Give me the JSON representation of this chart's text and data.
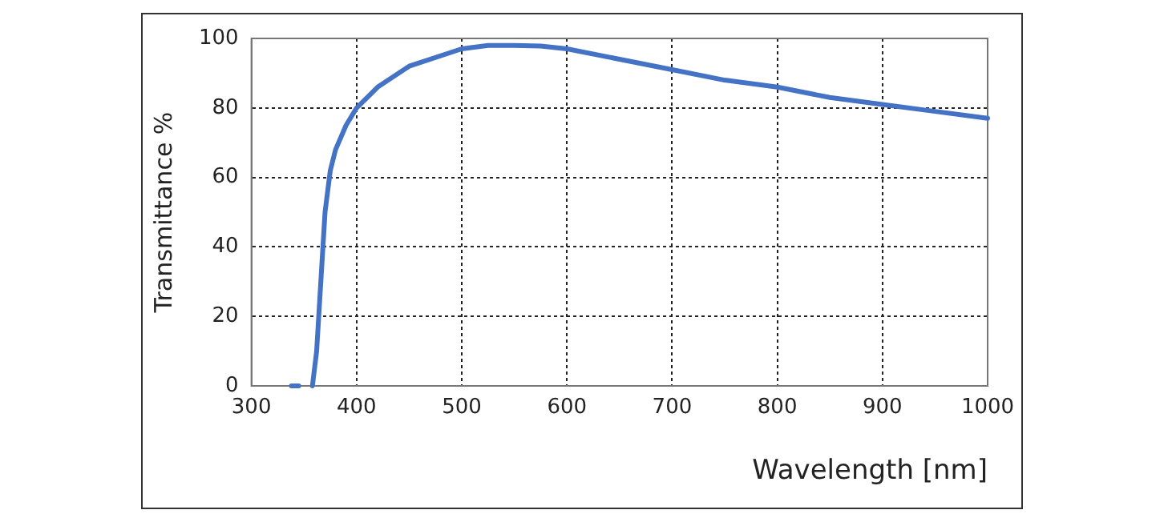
{
  "chart_data": {
    "type": "line",
    "xlabel": "Wavelength [nm]",
    "ylabel": "Transmittance %",
    "x": [
      338,
      345,
      346,
      358,
      362,
      366,
      370,
      375,
      380,
      390,
      400,
      420,
      450,
      500,
      525,
      550,
      575,
      600,
      650,
      700,
      750,
      800,
      850,
      900,
      950,
      1000
    ],
    "series": [
      {
        "color": "#4472c4",
        "values": [
          0,
          0,
          null,
          0,
          10,
          30,
          50,
          62,
          68,
          75,
          80,
          86,
          92,
          97,
          98,
          98,
          97.8,
          97,
          94,
          91,
          88,
          86,
          83,
          81,
          79,
          77
        ]
      }
    ],
    "xlim": [
      300,
      1000
    ],
    "xticks": [
      300,
      400,
      500,
      600,
      700,
      800,
      900,
      1000
    ],
    "ylim": [
      0,
      100
    ],
    "yticks": [
      0,
      20,
      40,
      60,
      80,
      100
    ],
    "grid": true,
    "line_style": "solid",
    "marker": "none",
    "legend": false
  }
}
